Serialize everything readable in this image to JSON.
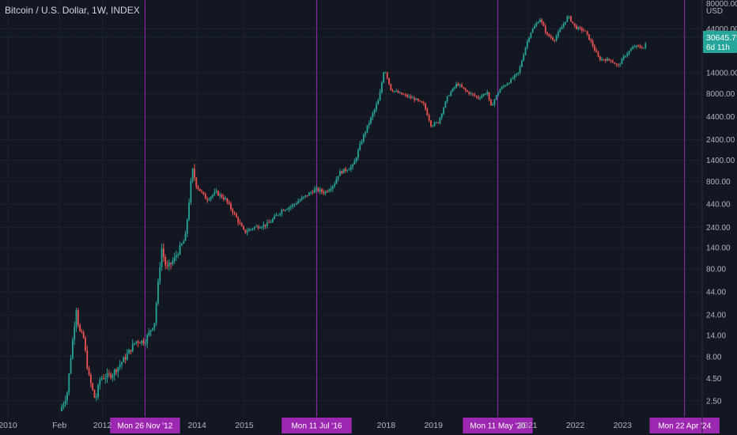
{
  "header": {
    "title": "Bitcoin / U.S. Dollar, 1W, INDEX"
  },
  "price_axis": {
    "currency": "USD",
    "top_label": "80000.00"
  },
  "last_price": {
    "value": "30645.75",
    "countdown": "6d 11h"
  },
  "colors": {
    "background": "#131722",
    "up": "#26a69a",
    "down": "#ef5350",
    "halving_line": "#9c27b0",
    "grid": "#1e222d",
    "axis_text": "#b2b5be"
  },
  "chart_data": {
    "type": "candlestick",
    "scale": "log",
    "title": "Bitcoin / U.S. Dollar, 1W, INDEX",
    "grid": true,
    "ylim": [
      1.9,
      80000
    ],
    "y_ticks": [
      "44000.00",
      "14000.00",
      "8000.00",
      "4400.00",
      "2400.00",
      "1400.00",
      "800.00",
      "440.00",
      "240.00",
      "140.00",
      "80.00",
      "44.00",
      "24.00",
      "14.00",
      "8.00",
      "4.50",
      "2.50"
    ],
    "x_ticks": [
      {
        "label": "2010",
        "year": 2010.0
      },
      {
        "label": "Feb",
        "year": 2011.09
      },
      {
        "label": "2012",
        "year": 2012.0
      },
      {
        "label": "2014",
        "year": 2014.0
      },
      {
        "label": "2015",
        "year": 2015.0
      },
      {
        "label": "2018",
        "year": 2018.0
      },
      {
        "label": "2019",
        "year": 2019.0
      },
      {
        "label": "2021",
        "year": 2021.0
      },
      {
        "label": "2022",
        "year": 2022.0
      },
      {
        "label": "2023",
        "year": 2023.0
      }
    ],
    "vertical_lines": [
      {
        "label": "Mon 26 Nov '12",
        "year": 2012.9
      },
      {
        "label": "Mon 11 Jul '16",
        "year": 2016.53
      },
      {
        "label": "Mon 11 May '20",
        "year": 2020.36
      },
      {
        "label": "Mon 22 Apr '24",
        "year": 2024.31
      }
    ],
    "price_path": [
      [
        2011.1,
        1.9
      ],
      [
        2011.25,
        3
      ],
      [
        2011.35,
        10
      ],
      [
        2011.45,
        30
      ],
      [
        2011.5,
        16
      ],
      [
        2011.6,
        13
      ],
      [
        2011.7,
        5
      ],
      [
        2011.85,
        2.5
      ],
      [
        2011.95,
        4.5
      ],
      [
        2012.2,
        5
      ],
      [
        2012.5,
        8
      ],
      [
        2012.7,
        12
      ],
      [
        2012.9,
        12
      ],
      [
        2013.1,
        20
      ],
      [
        2013.25,
        140
      ],
      [
        2013.35,
        80
      ],
      [
        2013.5,
        100
      ],
      [
        2013.75,
        180
      ],
      [
        2013.9,
        1100
      ],
      [
        2014.0,
        700
      ],
      [
        2014.2,
        500
      ],
      [
        2014.4,
        600
      ],
      [
        2014.6,
        500
      ],
      [
        2014.8,
        330
      ],
      [
        2015.0,
        210
      ],
      [
        2015.2,
        240
      ],
      [
        2015.5,
        260
      ],
      [
        2015.8,
        380
      ],
      [
        2016.0,
        420
      ],
      [
        2016.5,
        650
      ],
      [
        2016.7,
        600
      ],
      [
        2016.9,
        750
      ],
      [
        2017.0,
        1000
      ],
      [
        2017.3,
        1200
      ],
      [
        2017.5,
        2500
      ],
      [
        2017.7,
        4500
      ],
      [
        2017.85,
        7000
      ],
      [
        2017.96,
        16000
      ],
      [
        2018.1,
        9000
      ],
      [
        2018.3,
        8000
      ],
      [
        2018.6,
        7000
      ],
      [
        2018.8,
        6000
      ],
      [
        2018.95,
        3500
      ],
      [
        2019.1,
        3800
      ],
      [
        2019.3,
        7500
      ],
      [
        2019.5,
        10500
      ],
      [
        2019.7,
        8500
      ],
      [
        2019.95,
        7200
      ],
      [
        2020.15,
        8500
      ],
      [
        2020.2,
        5500
      ],
      [
        2020.4,
        9000
      ],
      [
        2020.6,
        11000
      ],
      [
        2020.8,
        14000
      ],
      [
        2020.95,
        28000
      ],
      [
        2021.05,
        40000
      ],
      [
        2021.25,
        58000
      ],
      [
        2021.4,
        38000
      ],
      [
        2021.55,
        33000
      ],
      [
        2021.7,
        45000
      ],
      [
        2021.85,
        62000
      ],
      [
        2022.0,
        46000
      ],
      [
        2022.2,
        42000
      ],
      [
        2022.35,
        30000
      ],
      [
        2022.5,
        20000
      ],
      [
        2022.75,
        19500
      ],
      [
        2022.9,
        16500
      ],
      [
        2023.05,
        22000
      ],
      [
        2023.25,
        28000
      ],
      [
        2023.45,
        27000
      ],
      [
        2023.5,
        30645
      ]
    ]
  }
}
